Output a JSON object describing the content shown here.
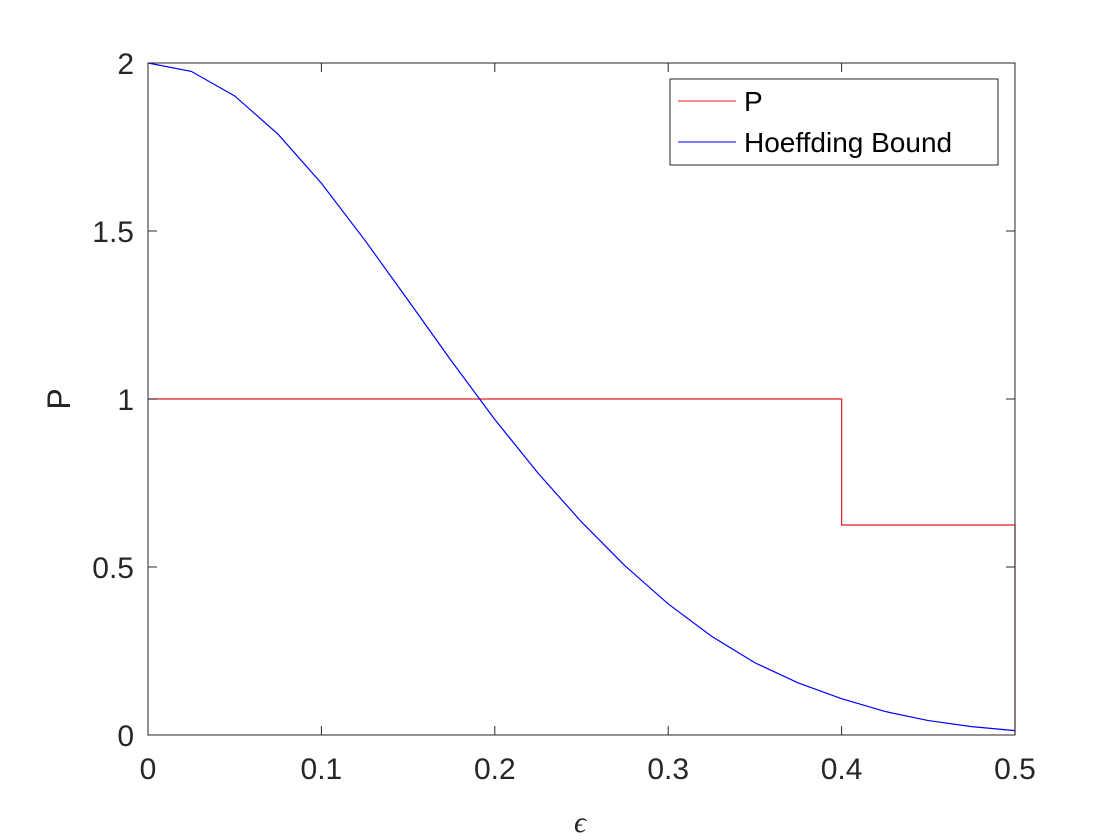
{
  "chart_data": {
    "type": "line",
    "title": "",
    "xlabel": "ϵ",
    "ylabel": "P",
    "xlim": [
      0,
      0.5
    ],
    "ylim": [
      0,
      2
    ],
    "xticks": [
      0,
      0.1,
      0.2,
      0.3,
      0.4,
      0.5
    ],
    "xtick_labels": [
      "0",
      "0.1",
      "0.2",
      "0.3",
      "0.4",
      "0.5"
    ],
    "yticks": [
      0,
      0.5,
      1,
      1.5,
      2
    ],
    "ytick_labels": [
      "0",
      "0.5",
      "1",
      "1.5",
      "2"
    ],
    "grid": false,
    "legend_position": "top-right",
    "series": [
      {
        "name": "P",
        "color": "#e41a1c",
        "x": [
          0,
          0.4,
          0.4,
          0.5,
          0.5
        ],
        "y": [
          1,
          1,
          0.625,
          0.625,
          0
        ]
      },
      {
        "name": "Hoeffding Bound",
        "color": "#0000ff",
        "x": [
          0,
          0.025,
          0.05,
          0.075,
          0.1,
          0.125,
          0.15,
          0.175,
          0.2,
          0.225,
          0.25,
          0.275,
          0.3,
          0.325,
          0.35,
          0.375,
          0.4,
          0.425,
          0.45,
          0.475,
          0.5
        ],
        "y": [
          2,
          1.975,
          1.902,
          1.788,
          1.642,
          1.473,
          1.294,
          1.113,
          0.939,
          0.779,
          0.634,
          0.504,
          0.39,
          0.294,
          0.215,
          0.155,
          0.108,
          0.07,
          0.043,
          0.025,
          0.013
        ]
      }
    ]
  }
}
